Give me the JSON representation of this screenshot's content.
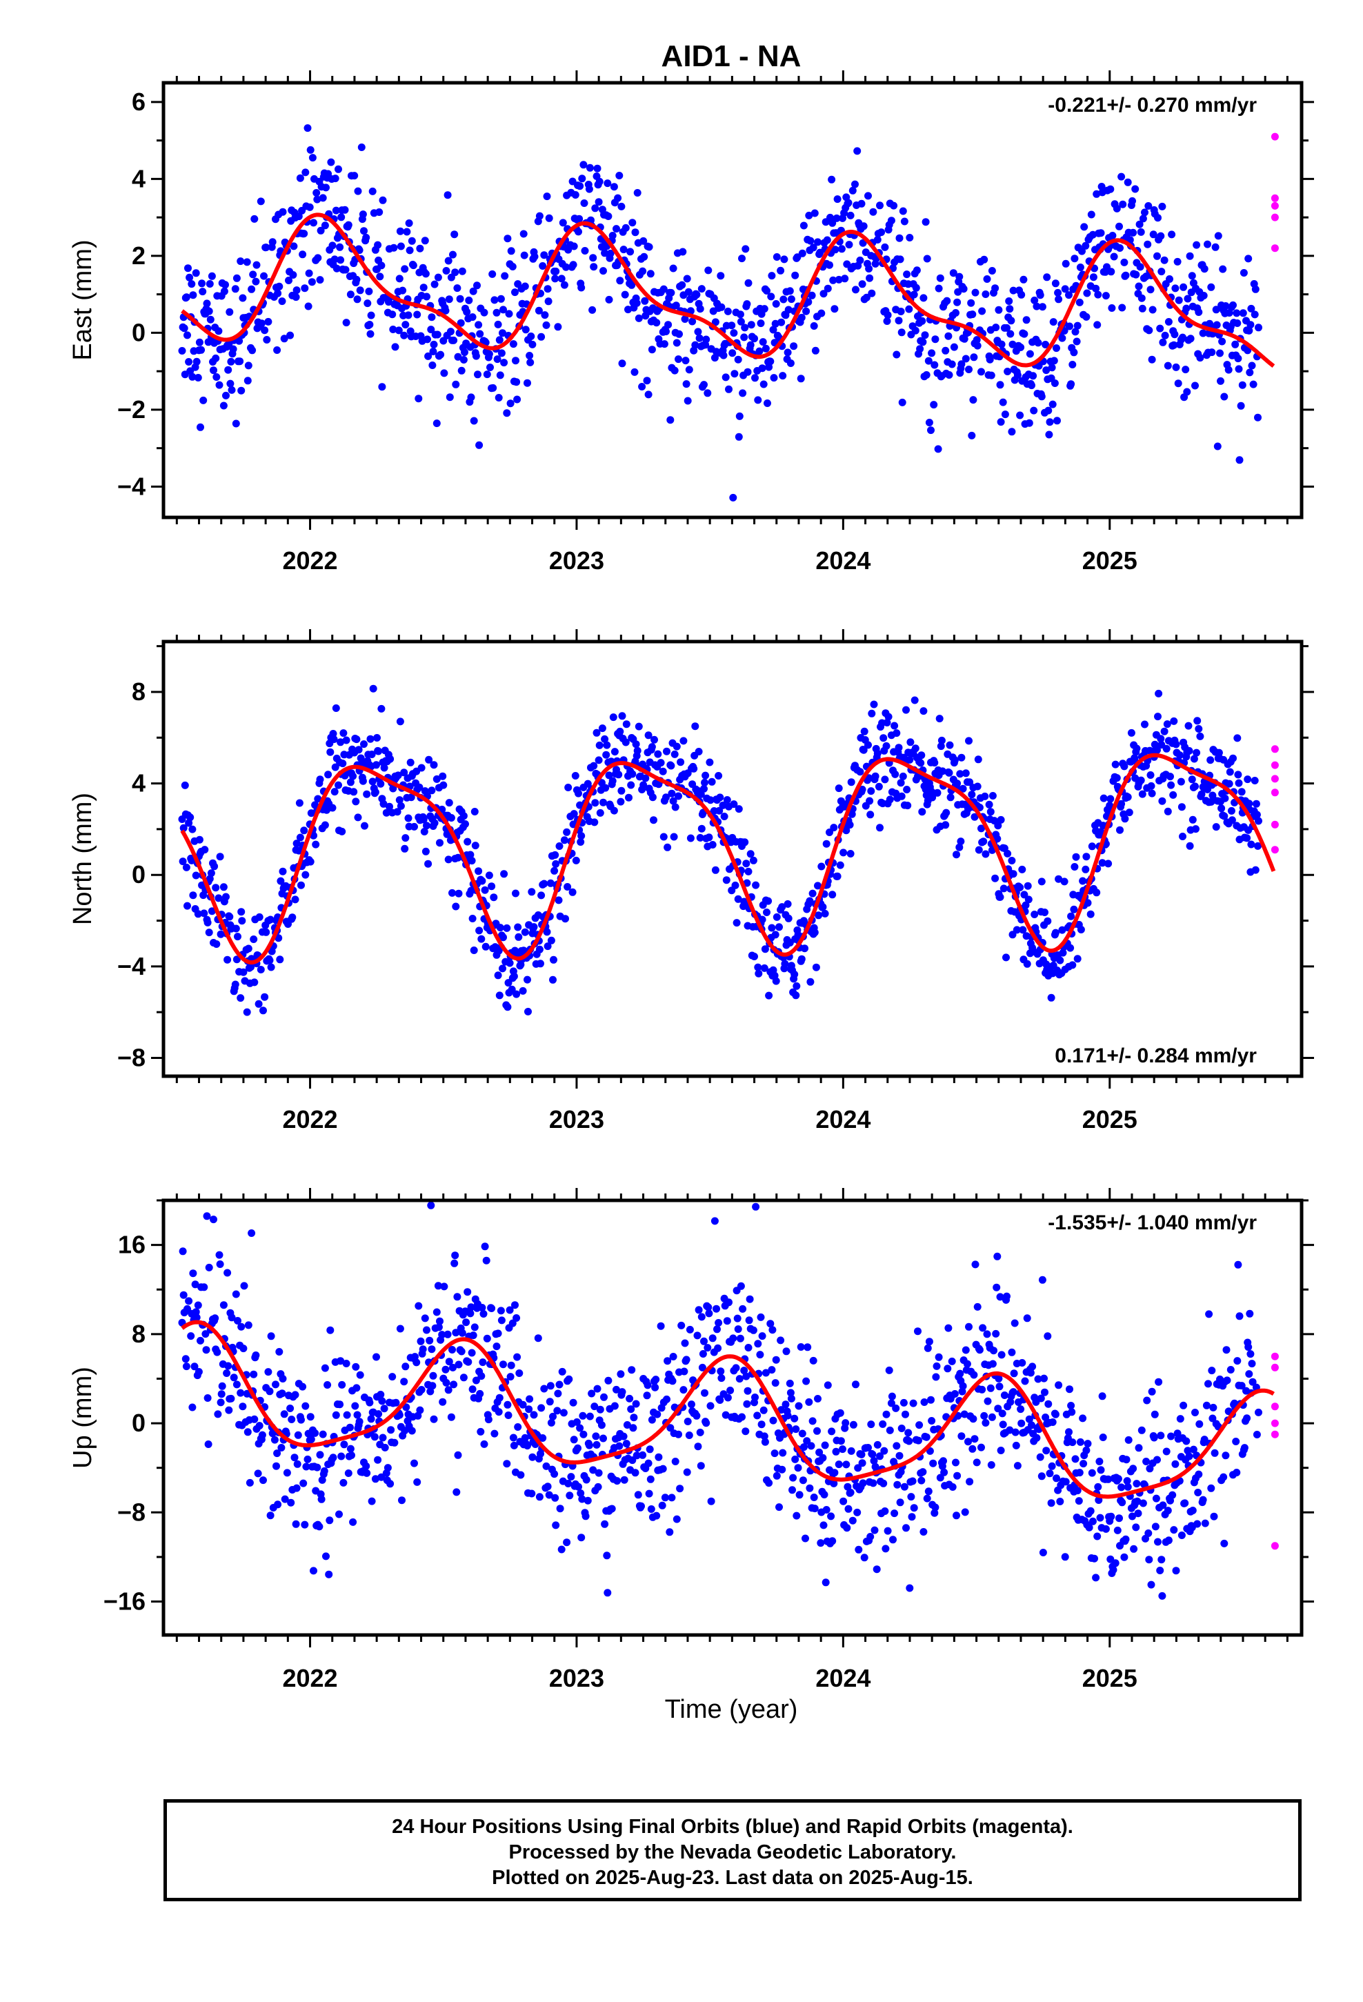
{
  "title": "AID1 - NA",
  "xlabel": "Time (year)",
  "x_ticks": [
    "2022",
    "2023",
    "2024",
    "2025"
  ],
  "colors": {
    "final": "#0000ff",
    "rapid": "#ff00ff",
    "fit": "#ff0000"
  },
  "footer": {
    "line1": "24 Hour Positions Using Final Orbits (blue) and Rapid Orbits (magenta).",
    "line2": "Processed by the Nevada Geodetic Laboratory.",
    "line3": "Plotted on 2025-Aug-23. Last data on 2025-Aug-15."
  },
  "chart_data": [
    {
      "type": "scatter",
      "ylabel": "East (mm)",
      "rate": "-0.221+/- 0.270 mm/yr",
      "rate_position": "top-right",
      "xlim": [
        2021.45,
        2025.72
      ],
      "ylim": [
        -4.8,
        6.5
      ],
      "y_ticks": [
        6,
        4,
        2,
        0,
        -2,
        -4
      ],
      "y_tick_labels": [
        "6",
        "4",
        "2",
        "0",
        "−2",
        "−4"
      ],
      "fit": {
        "offset": 0.9,
        "slope": -0.221,
        "amp1": 1.4,
        "phase1": 0.08,
        "amp2": 0.55,
        "phase2": 0.5,
        "noise": 1.0,
        "t0": 2023.5
      },
      "rapid_values": [
        5.1,
        3.5,
        3.3,
        3.0,
        2.2
      ]
    },
    {
      "type": "scatter",
      "ylabel": "North (mm)",
      "rate": "0.171+/- 0.284 mm/yr",
      "rate_position": "bottom-right",
      "xlim": [
        2021.45,
        2025.72
      ],
      "ylim": [
        -8.8,
        10.2
      ],
      "y_ticks": [
        8,
        4,
        0,
        -4,
        -8
      ],
      "y_tick_labels": [
        "8",
        "4",
        "0",
        "−4",
        "−8"
      ],
      "fit": {
        "offset": 1.5,
        "slope": 0.171,
        "amp1": 4.0,
        "phase1": 0.26,
        "amp2": 1.1,
        "phase2": 0.05,
        "noise": 1.1,
        "t0": 2023.5
      },
      "rapid_values": [
        5.5,
        4.8,
        4.2,
        3.6,
        2.2,
        1.1
      ]
    },
    {
      "type": "scatter",
      "ylabel": "Up (mm)",
      "rate": "-1.535+/- 1.040 mm/yr",
      "rate_position": "top-right",
      "xlim": [
        2021.45,
        2025.72
      ],
      "ylim": [
        -19.0,
        20.0
      ],
      "y_ticks": [
        16,
        8,
        0,
        -8,
        -16
      ],
      "y_tick_labels": [
        "16",
        "8",
        "0",
        "−8",
        "−16"
      ],
      "fit": {
        "offset": 0.0,
        "slope": -1.535,
        "amp1": 5.0,
        "phase1": 0.56,
        "amp2": 1.2,
        "phase2": 0.1,
        "noise": 4.0,
        "t0": 2023.5
      },
      "rapid_values": [
        6.0,
        5.0,
        1.5,
        0.0,
        -1.0,
        -11.0
      ]
    }
  ]
}
